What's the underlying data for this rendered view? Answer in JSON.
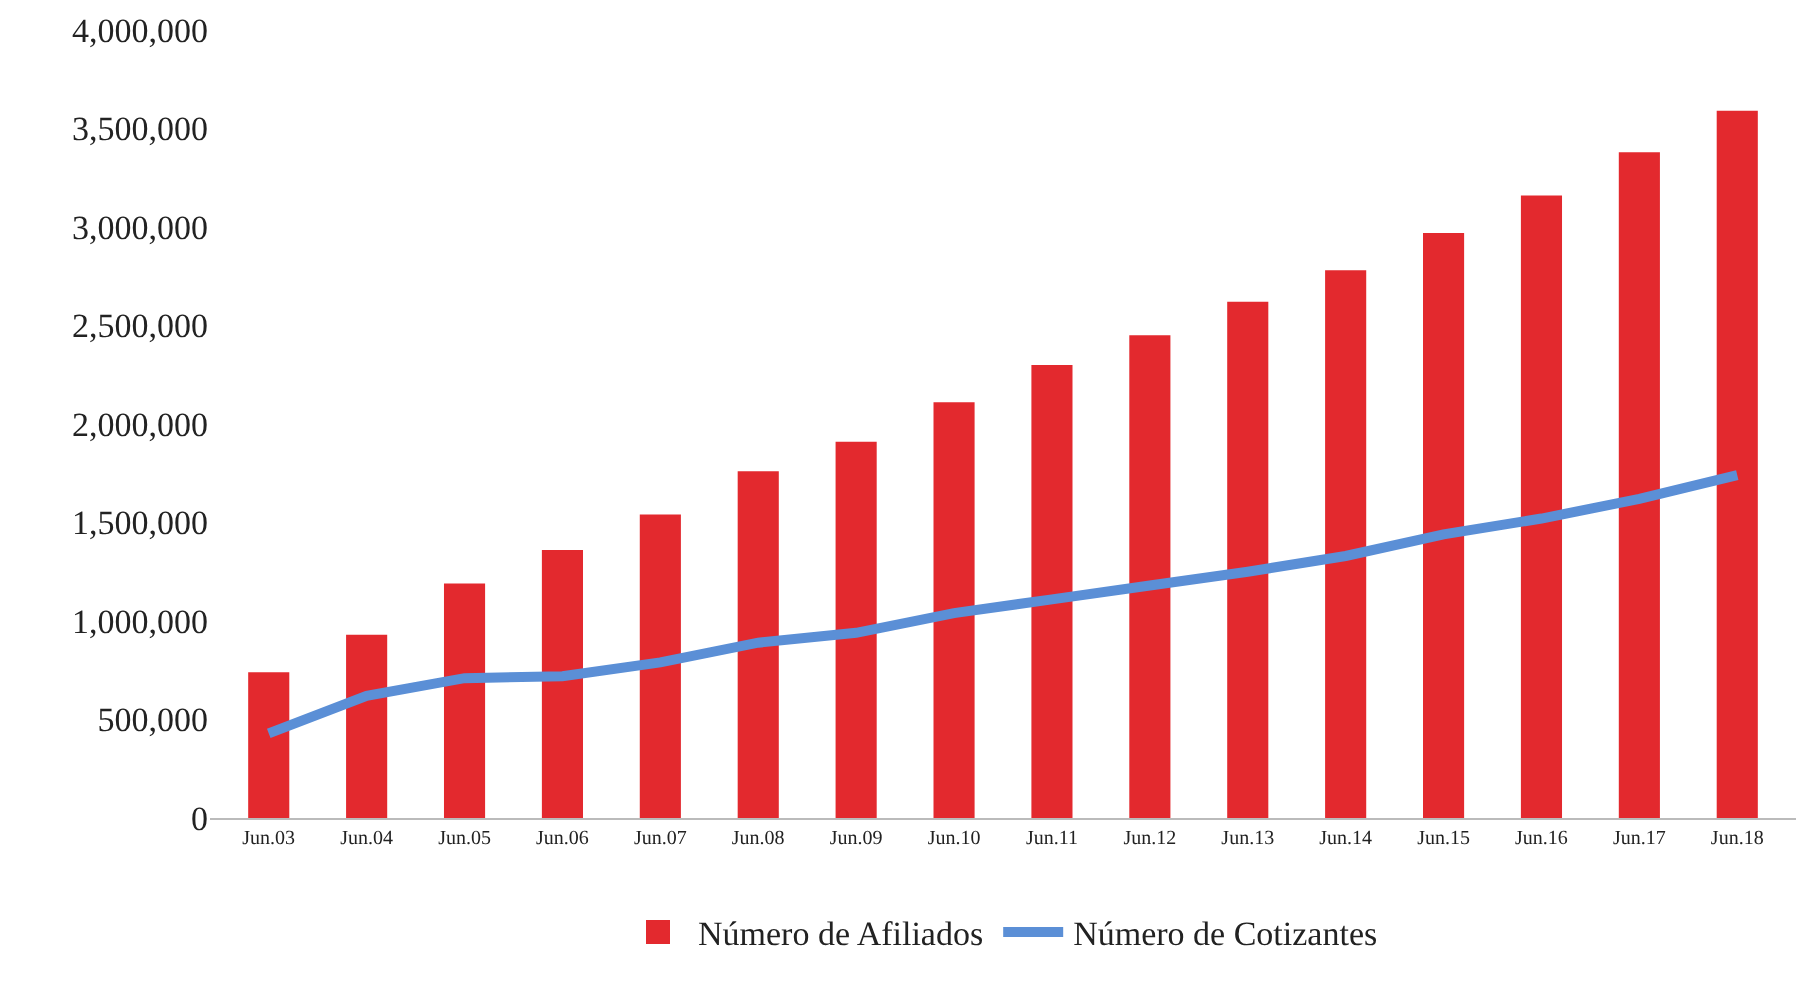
{
  "chart_data": {
    "type": "bar",
    "categories": [
      "Jun.03",
      "Jun.04",
      "Jun.05",
      "Jun.06",
      "Jun.07",
      "Jun.08",
      "Jun.09",
      "Jun.10",
      "Jun.11",
      "Jun.12",
      "Jun.13",
      "Jun.14",
      "Jun.15",
      "Jun.16",
      "Jun.17",
      "Jun.18"
    ],
    "series": [
      {
        "name": "Número de Afiliados",
        "color": "#e3292e",
        "values": [
          740000,
          930000,
          1190000,
          1360000,
          1540000,
          1760000,
          1910000,
          2110000,
          2300000,
          2450000,
          2620000,
          2780000,
          2970000,
          3160000,
          3380000,
          3590000
        ]
      },
      {
        "name": "Número de Cotizantes",
        "type": "line",
        "color": "#5b8fd6",
        "values": [
          430000,
          620000,
          710000,
          720000,
          790000,
          890000,
          940000,
          1040000,
          1110000,
          1180000,
          1250000,
          1330000,
          1440000,
          1520000,
          1620000,
          1740000
        ]
      }
    ],
    "ylim": [
      0,
      4000000
    ],
    "yticks": [
      0,
      {
        "value": 500000,
        "label": "500,000"
      },
      {
        "value": 1000000,
        "label": "1,000,000"
      },
      {
        "value": 1500000,
        "label": "1,500,000"
      },
      {
        "value": 2000000,
        "label": "2,000,000"
      },
      {
        "value": 2500000,
        "label": "2,500,000"
      },
      {
        "value": 3000000,
        "label": "3,000,000"
      },
      {
        "value": 3500000,
        "label": "3,500,000"
      },
      {
        "value": 4000000,
        "label": "4,000,000"
      }
    ],
    "grid": false,
    "legend": "bottom",
    "marker": "none",
    "line_style": "solid"
  }
}
